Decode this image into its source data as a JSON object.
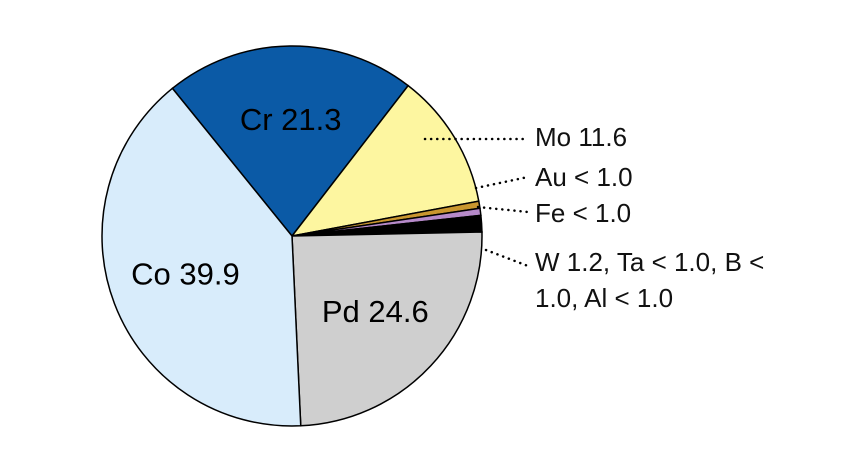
{
  "chart_data": {
    "type": "pie",
    "categories": [
      "Cr",
      "Mo",
      "Au",
      "Fe",
      "W 1.2, Ta < 1.0, B < 1.0, Al < 1.0",
      "Pd",
      "Co"
    ],
    "values": [
      21.3,
      11.6,
      0.6,
      0.6,
      1.4,
      24.6,
      39.9
    ],
    "value_labels": [
      "21.3",
      "11.6",
      "< 1.0",
      "< 1.0",
      null,
      "24.6",
      "39.9"
    ],
    "colors": [
      "#0b5aa6",
      "#fdf6a0",
      "#c9962f",
      "#b68ac9",
      "#000000",
      "#cfcfcf",
      "#d8ecfb"
    ]
  }
}
